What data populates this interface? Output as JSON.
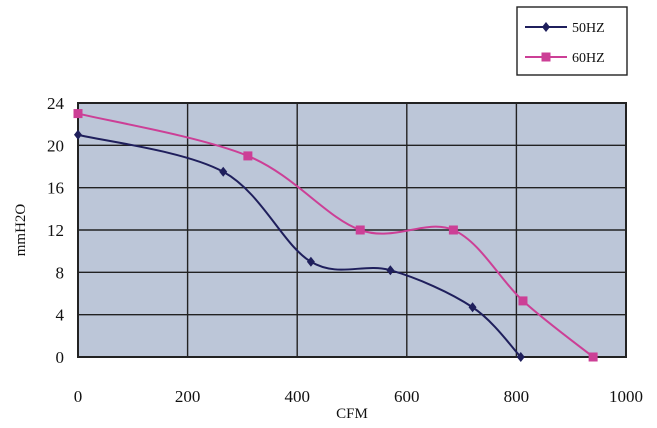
{
  "chart_data": {
    "type": "line",
    "xlabel": "CFM",
    "ylabel": "mmH2O",
    "xlim": [
      0,
      1000
    ],
    "ylim": [
      0,
      24
    ],
    "xticks": [
      "0",
      "200",
      "400",
      "600",
      "800",
      "1000"
    ],
    "yticks": [
      "0",
      "4",
      "8",
      "12",
      "16",
      "20",
      "24"
    ],
    "grid": true,
    "plot_background": "#bcc6d8",
    "legend_position": "top-right",
    "series": [
      {
        "name": "50HZ",
        "color": "#1f1f5c",
        "marker": "diamond",
        "points": [
          [
            0,
            21
          ],
          [
            265,
            17.5
          ],
          [
            425,
            9
          ],
          [
            570,
            8.2
          ],
          [
            720,
            4.7
          ],
          [
            808,
            0
          ]
        ]
      },
      {
        "name": "60HZ",
        "color": "#cc3f96",
        "marker": "square",
        "points": [
          [
            0,
            23
          ],
          [
            310,
            19
          ],
          [
            515,
            12
          ],
          [
            685,
            12
          ],
          [
            812,
            5.3
          ],
          [
            940,
            0
          ]
        ]
      }
    ]
  }
}
